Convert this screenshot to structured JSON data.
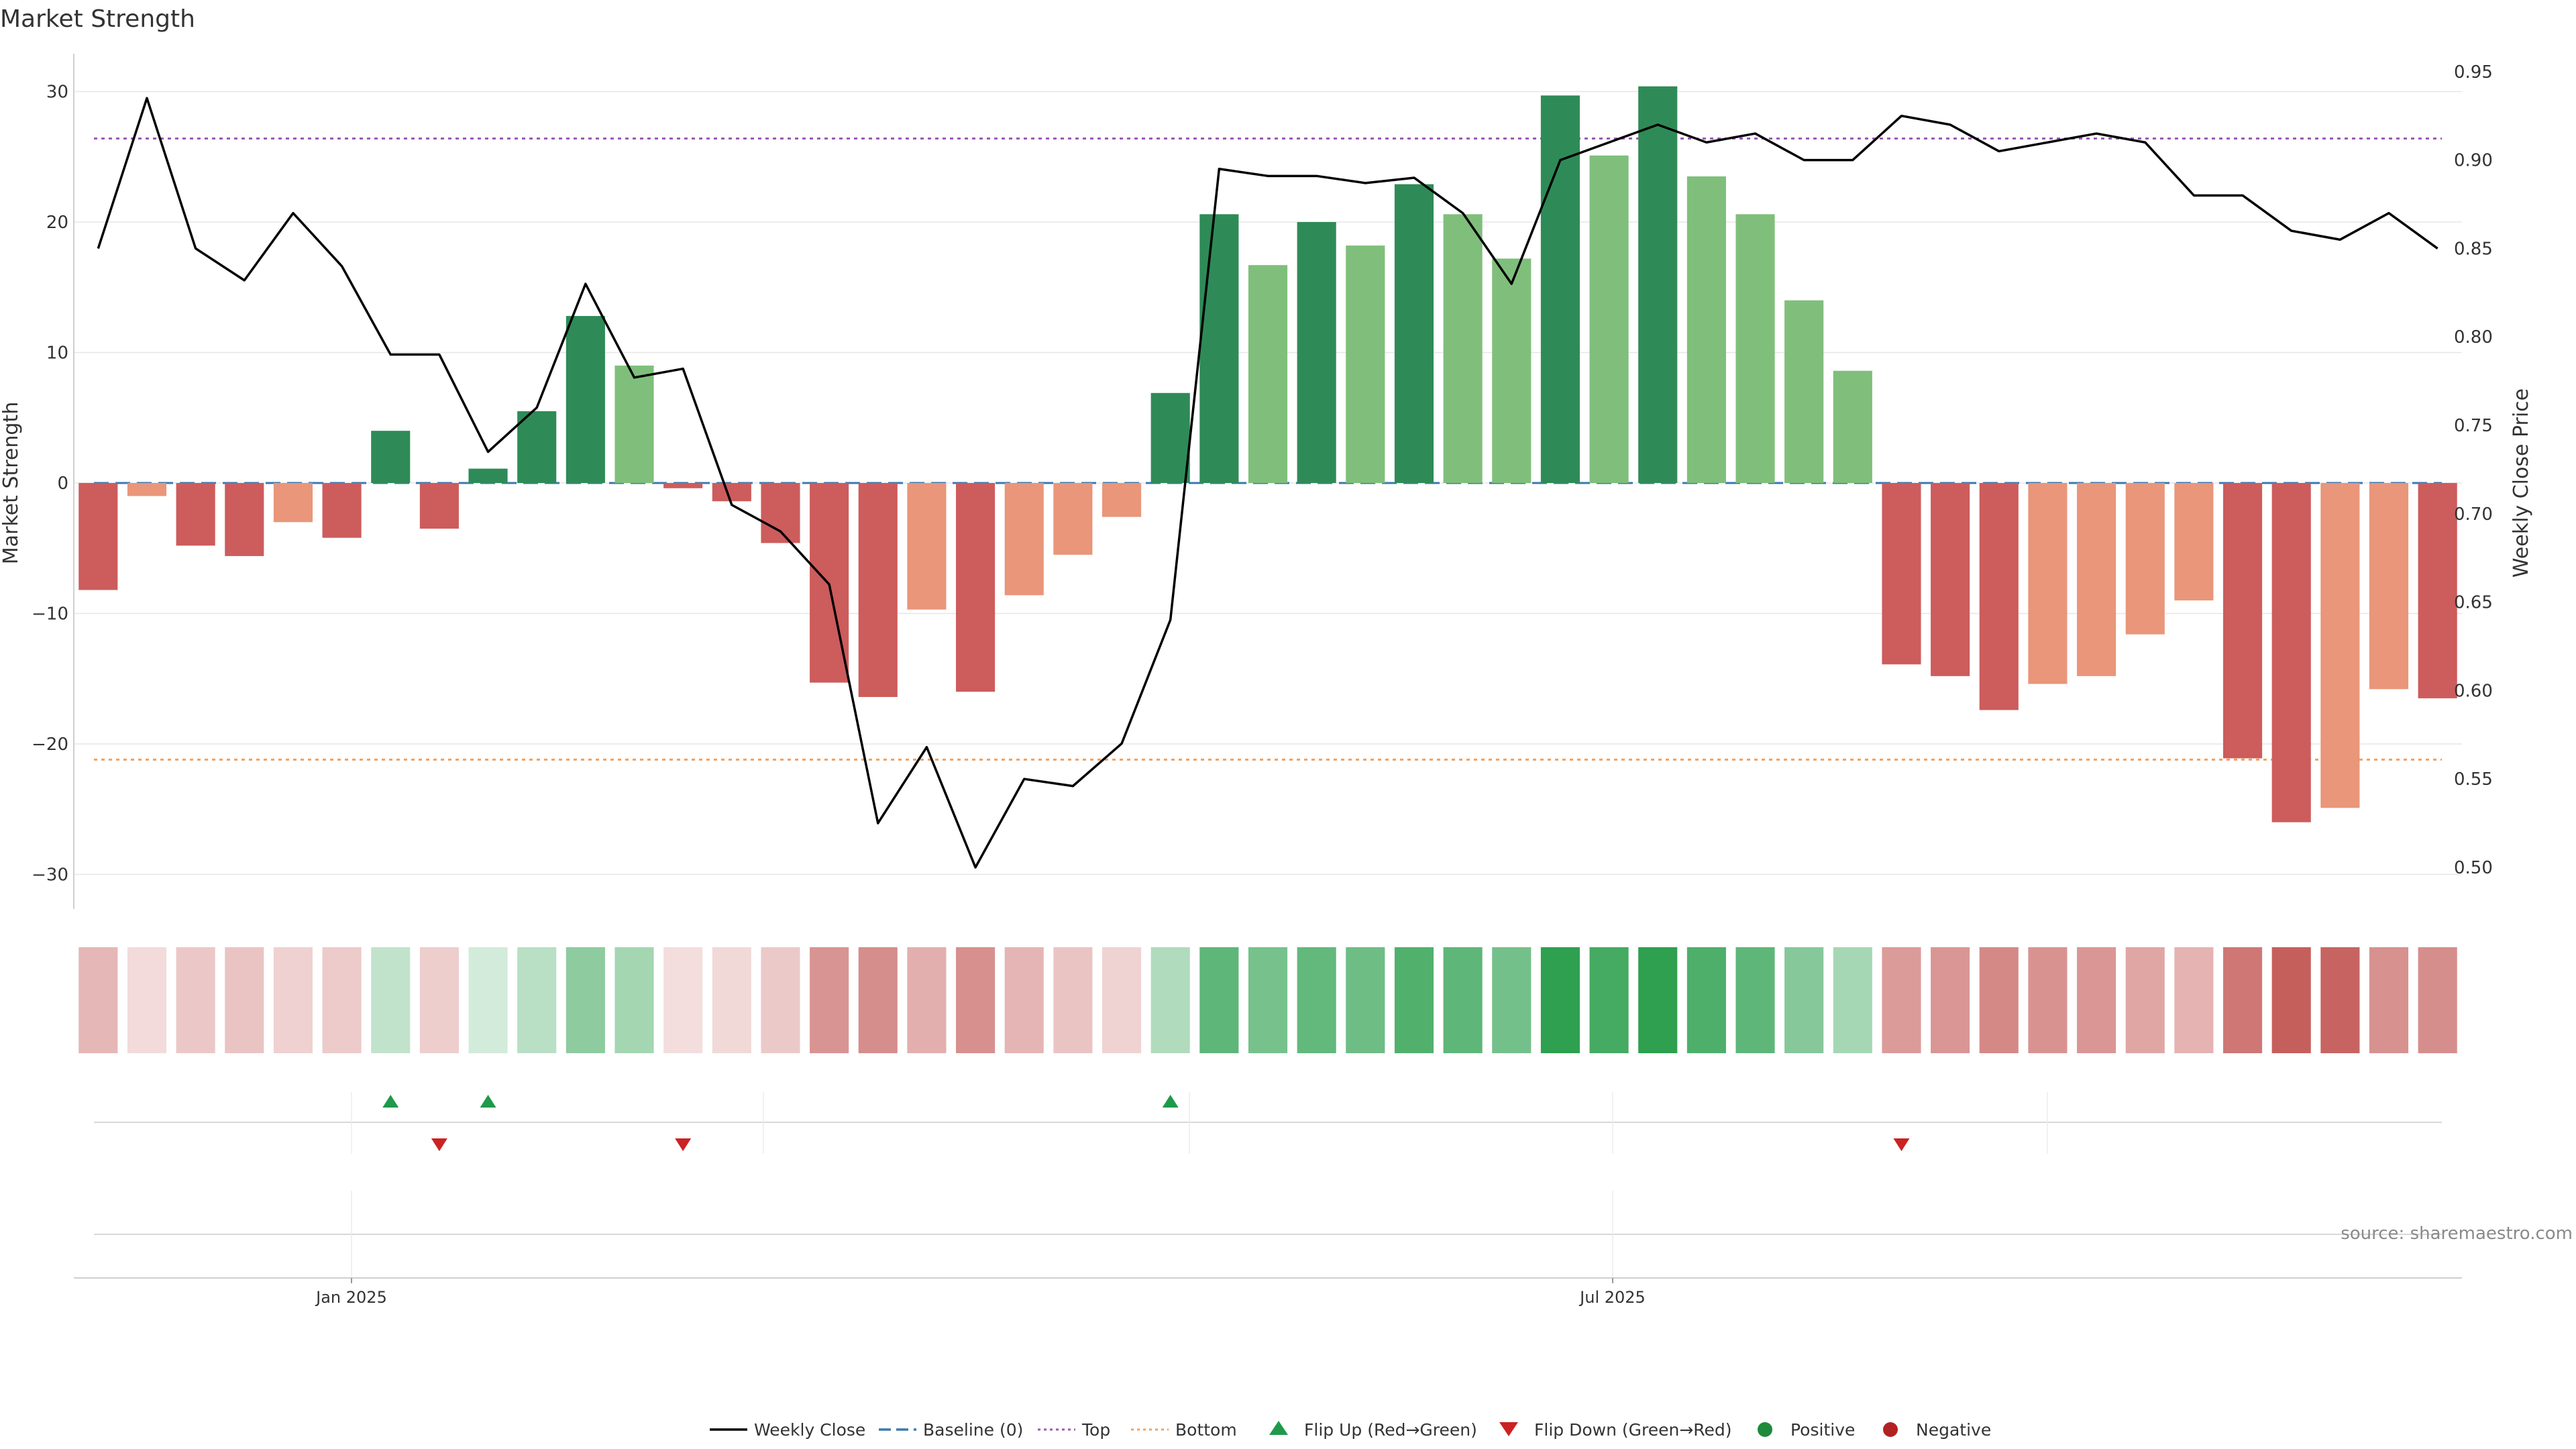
{
  "chart_data": {
    "type": "bar",
    "title": "Market Strength",
    "ylabel_left": "Market Strength",
    "ylabel_right": "Weekly Close Price",
    "ylim_left": [
      -33,
      33
    ],
    "ylim_right": [
      0.48,
      0.95
    ],
    "yticks_left": [
      30,
      20,
      10,
      0,
      -10,
      -20,
      -30
    ],
    "yticks_left_labels": [
      "30",
      "20",
      "10",
      "0",
      "−10",
      "−20",
      "−30"
    ],
    "yticks_right": [
      0.95,
      0.9,
      0.85,
      0.8,
      0.75,
      0.7,
      0.65,
      0.6,
      0.55,
      0.5
    ],
    "yticks_right_labels": [
      "0.95",
      "0.90",
      "0.85",
      "0.80",
      "0.75",
      "0.70",
      "0.65",
      "0.60",
      "0.55",
      "0.50"
    ],
    "x_dates": [
      "Jan 2025",
      "Jul 2025"
    ],
    "grid": true,
    "top_level": 26.4,
    "bottom_level": -21.2,
    "strength_values": [
      -8.2,
      -1.0,
      -4.8,
      -5.6,
      -3.0,
      -4.2,
      4.0,
      -3.5,
      1.1,
      5.5,
      12.8,
      9.0,
      -0.4,
      -1.4,
      -4.6,
      -15.3,
      -16.4,
      -9.7,
      -16.0,
      -8.6,
      -5.5,
      -2.6,
      6.9,
      20.6,
      16.7,
      20.0,
      18.2,
      22.9,
      20.6,
      17.2,
      29.7,
      25.1,
      30.4,
      23.5,
      20.6,
      14.0,
      8.6,
      -13.9,
      -14.8,
      -17.4,
      -15.4,
      -14.8,
      -11.6,
      -9.0,
      -21.1,
      -26.0,
      -24.9,
      -15.8,
      -16.5
    ],
    "weekly_close": [
      0.85,
      0.935,
      0.85,
      0.832,
      0.87,
      0.84,
      0.79,
      0.79,
      0.735,
      0.76,
      0.83,
      0.777,
      0.782,
      0.705,
      0.69,
      0.66,
      0.525,
      0.568,
      0.5,
      0.55,
      0.546,
      0.57,
      0.64,
      0.895,
      0.891,
      0.891,
      0.887,
      0.89,
      0.87,
      0.83,
      0.9,
      0.91,
      0.92,
      0.91,
      0.915,
      0.9,
      0.9,
      0.925,
      0.92,
      0.905,
      0.91,
      0.915,
      0.91,
      0.88,
      0.88,
      0.86,
      0.855,
      0.87,
      0.85
    ],
    "flip_up_indices": [
      6,
      8,
      22
    ],
    "flip_down_indices": [
      7,
      12,
      37
    ],
    "strength_strip_note": "heat strip mirrors bar sign and magnitude",
    "source_text": "source: sharemaestro.com",
    "legend_position": "bottom-center",
    "legend": [
      {
        "label": "Weekly Close",
        "type": "line",
        "color": "#000000"
      },
      {
        "label": "Baseline (0)",
        "type": "dash",
        "color": "#3a78b0"
      },
      {
        "label": "Top",
        "type": "dot",
        "color": "#9b59b6"
      },
      {
        "label": "Bottom",
        "type": "dot",
        "color": "#f0a060"
      },
      {
        "label": "Flip Up (Red→Green)",
        "type": "tri-up",
        "color": "#1e9a4a"
      },
      {
        "label": "Flip Down (Green→Red)",
        "type": "tri-down",
        "color": "#cc2222"
      },
      {
        "label": "Positive",
        "type": "dot-marker",
        "color": "#1e8a3a"
      },
      {
        "label": "Negative",
        "type": "dot-marker",
        "color": "#b22222"
      }
    ],
    "colors": {
      "strong_green": "#2e8b57",
      "light_green": "#7fbf7b",
      "strong_red": "#cd5c5c",
      "light_red": "#e9967a",
      "top_line": "#9b59b6",
      "bottom_line": "#f0a060",
      "baseline": "#3a78b0"
    }
  }
}
